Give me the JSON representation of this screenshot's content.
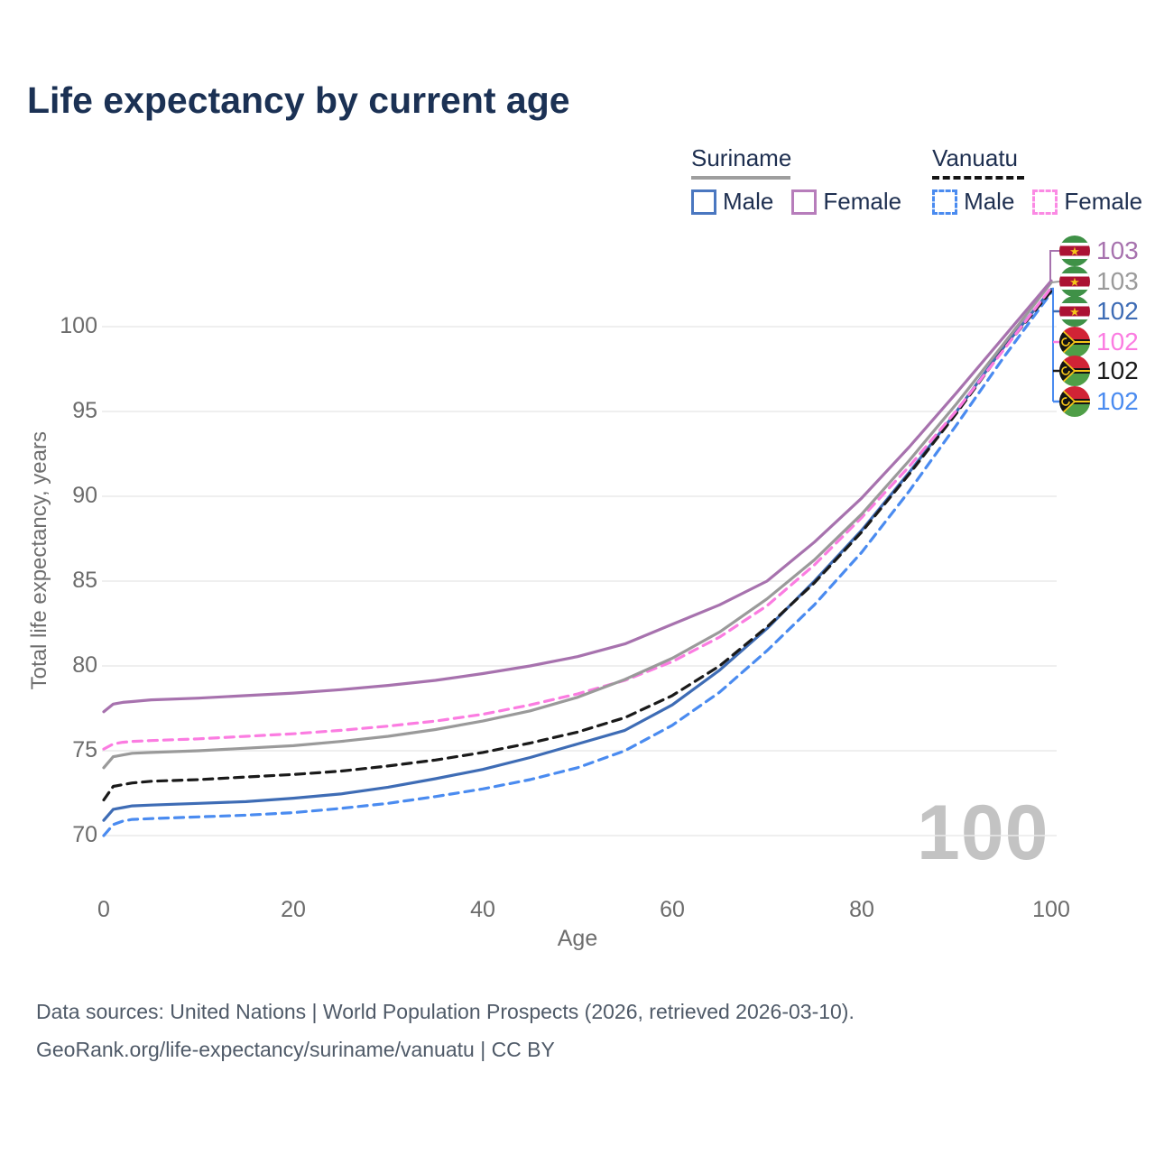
{
  "title": "Life expectancy by current age",
  "legend": {
    "suriname": {
      "title": "Suriname",
      "male": "Male",
      "female": "Female"
    },
    "vanuatu": {
      "title": "Vanuatu",
      "male": "Male",
      "female": "Female"
    }
  },
  "colors": {
    "suriname_male": "#4a77c0",
    "suriname_female": "#b77dbb",
    "vanuatu_male": "#4a8bf0",
    "vanuatu_female": "#fb8ae4",
    "suriname_underline": "#9e9e9e",
    "vanuatu_underline": "#151515",
    "gridline": "#eaeaea",
    "axis_text": "#6b6b6b",
    "title_text": "#1b3154",
    "watermark_text": "#c3c3c3"
  },
  "watermark": "100",
  "source_line1": "Data sources: United Nations | World Population Prospects (2026, retrieved 2026-03-10).",
  "source_line2": "GeoRank.org/life-expectancy/suriname/vanuatu | CC BY",
  "chart_data": {
    "type": "line",
    "title": "Life expectancy by current age",
    "xlabel": "Age",
    "ylabel": "Total life expectancy, years",
    "xlim": [
      0,
      100
    ],
    "ylim": [
      70,
      100
    ],
    "x_ticks": [
      0,
      20,
      40,
      60,
      80,
      100
    ],
    "y_ticks": [
      70,
      75,
      80,
      85,
      90,
      95,
      100
    ],
    "grid": "horizontal",
    "legend_position": "top-right",
    "ages": [
      0,
      1,
      2,
      3,
      5,
      10,
      15,
      20,
      25,
      30,
      35,
      40,
      45,
      50,
      55,
      60,
      65,
      70,
      75,
      80,
      85,
      90,
      95,
      100
    ],
    "series": [
      {
        "name": "Suriname Female",
        "country": "Suriname",
        "sex": "Female",
        "line": "solid",
        "color": "#a772ae",
        "values": [
          77.3,
          77.75,
          77.85,
          77.9,
          78.0,
          78.1,
          78.25,
          78.4,
          78.6,
          78.85,
          79.15,
          79.55,
          80.0,
          80.55,
          81.3,
          82.45,
          83.6,
          85.0,
          87.3,
          89.9,
          92.9,
          96.1,
          99.4,
          102.7
        ]
      },
      {
        "name": "Suriname",
        "country": "Suriname",
        "sex": "Both",
        "line": "solid",
        "color": "#9a9a9a",
        "values": [
          74.0,
          74.65,
          74.75,
          74.85,
          74.9,
          75.0,
          75.15,
          75.3,
          75.55,
          75.85,
          76.25,
          76.75,
          77.35,
          78.15,
          79.2,
          80.45,
          82.0,
          83.95,
          86.25,
          88.95,
          92.1,
          95.45,
          99.0,
          102.6
        ]
      },
      {
        "name": "Suriname Male",
        "country": "Suriname",
        "sex": "Male",
        "line": "solid",
        "color": "#3e6cb5",
        "values": [
          70.9,
          71.55,
          71.65,
          71.75,
          71.8,
          71.9,
          72.0,
          72.2,
          72.45,
          72.85,
          73.35,
          73.9,
          74.6,
          75.4,
          76.2,
          77.7,
          79.75,
          82.2,
          85.0,
          88.0,
          91.4,
          95.0,
          98.8,
          102.2
        ]
      },
      {
        "name": "Vanuatu Female",
        "country": "Vanuatu",
        "sex": "Female",
        "line": "dashed",
        "color": "#fb7ce1",
        "values": [
          75.1,
          75.4,
          75.5,
          75.55,
          75.6,
          75.7,
          75.85,
          76.0,
          76.2,
          76.45,
          76.75,
          77.15,
          77.7,
          78.35,
          79.15,
          80.25,
          81.7,
          83.55,
          85.95,
          88.75,
          91.75,
          95.05,
          98.65,
          102.3
        ]
      },
      {
        "name": "Vanuatu",
        "country": "Vanuatu",
        "sex": "Both",
        "line": "dashed",
        "color": "#1a1a1a",
        "values": [
          72.1,
          72.9,
          73.0,
          73.1,
          73.2,
          73.3,
          73.45,
          73.6,
          73.8,
          74.1,
          74.45,
          74.9,
          75.45,
          76.1,
          76.95,
          78.25,
          80.0,
          82.3,
          84.9,
          87.9,
          91.3,
          94.9,
          98.7,
          102.1
        ]
      },
      {
        "name": "Vanuatu Male",
        "country": "Vanuatu",
        "sex": "Male",
        "line": "dashed",
        "color": "#4a8bf0",
        "values": [
          70.0,
          70.65,
          70.85,
          70.95,
          71.0,
          71.1,
          71.2,
          71.35,
          71.6,
          71.9,
          72.3,
          72.75,
          73.3,
          74.0,
          75.0,
          76.5,
          78.45,
          80.9,
          83.6,
          86.7,
          90.3,
          94.2,
          98.2,
          102.0
        ]
      }
    ],
    "end_labels": [
      {
        "value": "103",
        "flag": "suriname",
        "color": "#a772ae"
      },
      {
        "value": "103",
        "flag": "suriname",
        "color": "#9a9a9a"
      },
      {
        "value": "102",
        "flag": "suriname",
        "color": "#3e6cb5"
      },
      {
        "value": "102",
        "flag": "vanuatu",
        "color": "#fb7ce1"
      },
      {
        "value": "102",
        "flag": "vanuatu",
        "color": "#1a1a1a"
      },
      {
        "value": "102",
        "flag": "vanuatu",
        "color": "#4a8bf0"
      }
    ]
  }
}
